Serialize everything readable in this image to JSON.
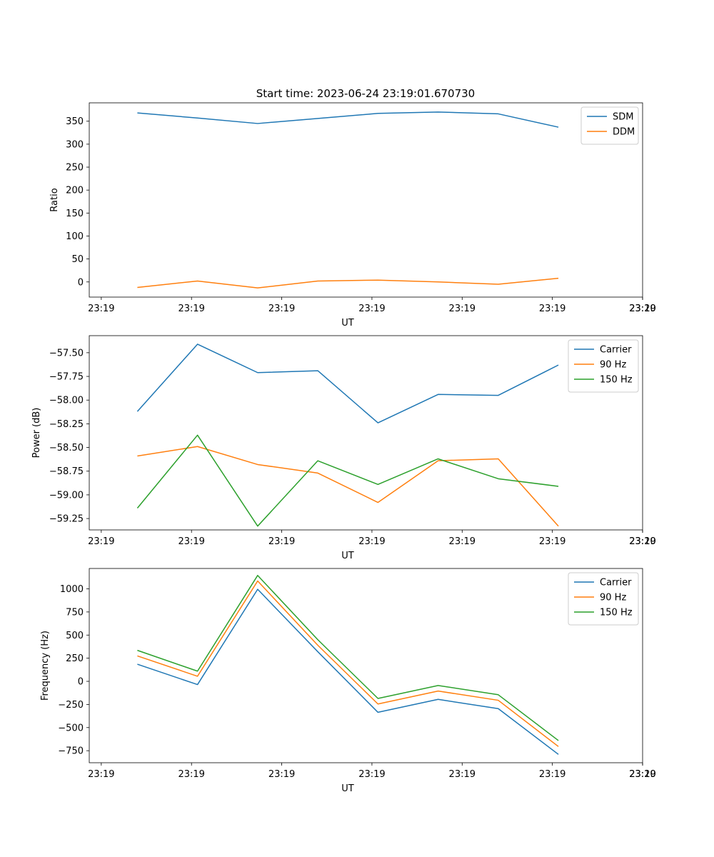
{
  "figure": {
    "title": "Start time: 2023-06-24 23:19:01.670730"
  },
  "chart_data": [
    {
      "type": "line",
      "title": "Start time: 2023-06-24 23:19:01.670730",
      "xlabel": "UT",
      "ylabel": "Ratio",
      "x_tick_labels": [
        "23:19",
        "23:19",
        "23:19",
        "23:19",
        "23:19",
        "23:19",
        "23:19"
      ],
      "x_end_tick_label": "23:20",
      "x": [
        1,
        2,
        3,
        4,
        5,
        6,
        7,
        8
      ],
      "xlim": [
        0.2,
        9.4
      ],
      "ylim": [
        -33,
        390
      ],
      "yticks": [
        0,
        50,
        100,
        150,
        200,
        250,
        300,
        350
      ],
      "legend": "top-right",
      "grid": false,
      "series": [
        {
          "name": "SDM",
          "color": "#1f77b4",
          "values": [
            368,
            357,
            345,
            356,
            367,
            370,
            366,
            337
          ]
        },
        {
          "name": "DDM",
          "color": "#ff7f0e",
          "values": [
            -12,
            2,
            -13,
            2,
            4,
            0,
            -5,
            8
          ]
        }
      ]
    },
    {
      "type": "line",
      "title": "",
      "xlabel": "UT",
      "ylabel": "Power (dB)",
      "x_tick_labels": [
        "23:19",
        "23:19",
        "23:19",
        "23:19",
        "23:19",
        "23:19",
        "23:19"
      ],
      "x_end_tick_label": "23:20",
      "x": [
        1,
        2,
        3,
        4,
        5,
        6,
        7,
        8
      ],
      "xlim": [
        0.2,
        9.4
      ],
      "ylim": [
        -59.37,
        -57.32
      ],
      "yticks": [
        -59.25,
        -59.0,
        -58.75,
        -58.5,
        -58.25,
        -58.0,
        -57.75,
        -57.5
      ],
      "ytick_labels": [
        "−59.25",
        "−59.00",
        "−58.75",
        "−58.50",
        "−58.25",
        "−58.00",
        "−57.75",
        "−57.50"
      ],
      "legend": "top-right",
      "grid": false,
      "series": [
        {
          "name": "Carrier",
          "color": "#1f77b4",
          "values": [
            -58.12,
            -57.41,
            -57.71,
            -57.69,
            -58.24,
            -57.94,
            -57.95,
            -57.63
          ]
        },
        {
          "name": "90 Hz",
          "color": "#ff7f0e",
          "values": [
            -58.59,
            -58.49,
            -58.68,
            -58.77,
            -59.08,
            -58.64,
            -58.62,
            -59.33
          ]
        },
        {
          "name": "150 Hz",
          "color": "#2ca02c",
          "values": [
            -59.14,
            -58.37,
            -59.33,
            -58.64,
            -58.89,
            -58.62,
            -58.83,
            -58.91
          ]
        }
      ]
    },
    {
      "type": "line",
      "title": "",
      "xlabel": "UT",
      "ylabel": "Frequency (Hz)",
      "x_tick_labels": [
        "23:19",
        "23:19",
        "23:19",
        "23:19",
        "23:19",
        "23:19",
        "23:19"
      ],
      "x_end_tick_label": "23:20",
      "x": [
        1,
        2,
        3,
        4,
        5,
        6,
        7,
        8
      ],
      "xlim": [
        0.2,
        9.4
      ],
      "ylim": [
        -880,
        1220
      ],
      "yticks": [
        -750,
        -500,
        -250,
        0,
        250,
        500,
        750,
        1000
      ],
      "ytick_labels": [
        "−750",
        "−500",
        "−250",
        "0",
        "250",
        "500",
        "750",
        "1000"
      ],
      "legend": "top-right",
      "grid": false,
      "series": [
        {
          "name": "Carrier",
          "color": "#1f77b4",
          "values": [
            185,
            -35,
            995,
            320,
            -335,
            -195,
            -295,
            -790
          ]
        },
        {
          "name": "90 Hz",
          "color": "#ff7f0e",
          "values": [
            275,
            55,
            1085,
            390,
            -245,
            -105,
            -205,
            -705
          ]
        },
        {
          "name": "150 Hz",
          "color": "#2ca02c",
          "values": [
            335,
            110,
            1145,
            450,
            -185,
            -45,
            -145,
            -640
          ]
        }
      ]
    }
  ]
}
